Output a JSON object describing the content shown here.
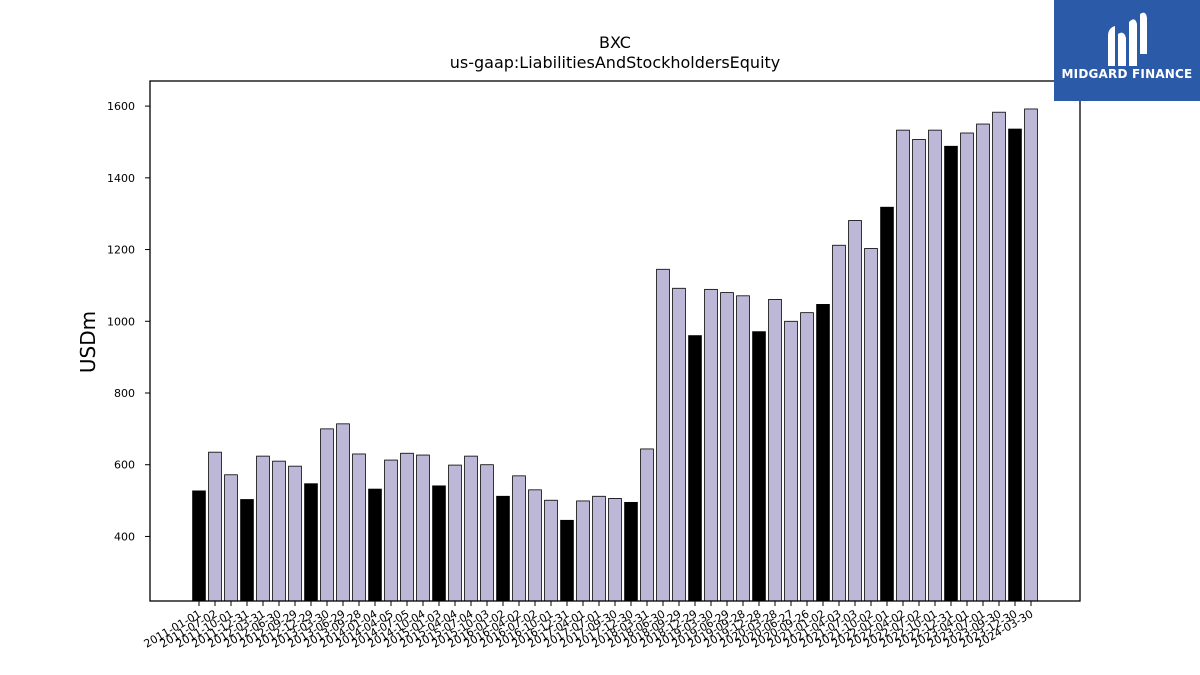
{
  "chart_data": {
    "type": "bar",
    "title": "BXC",
    "subtitle": "us-gaap:LiabilitiesAndStockholdersEquity",
    "ylabel": "USDm",
    "xlabel": "",
    "ylim": [
      220,
      1670
    ],
    "yticks": [
      400,
      600,
      800,
      1000,
      1200,
      1400,
      1600
    ],
    "colors": {
      "default": "#bdb8d8",
      "highlight": "#000000",
      "edge": "#000000"
    },
    "bars": [
      {
        "label": "2011-01-01",
        "value": 527,
        "highlight": true
      },
      {
        "label": "2011-07-02",
        "value": 635,
        "highlight": false
      },
      {
        "label": "2011-10-01",
        "value": 572,
        "highlight": false
      },
      {
        "label": "2011-12-31",
        "value": 503,
        "highlight": true
      },
      {
        "label": "2012-03-31",
        "value": 624,
        "highlight": false
      },
      {
        "label": "2012-06-30",
        "value": 610,
        "highlight": false
      },
      {
        "label": "2012-09-29",
        "value": 596,
        "highlight": false
      },
      {
        "label": "2012-12-29",
        "value": 547,
        "highlight": true
      },
      {
        "label": "2013-03-30",
        "value": 700,
        "highlight": false
      },
      {
        "label": "2013-06-29",
        "value": 714,
        "highlight": false
      },
      {
        "label": "2013-09-28",
        "value": 630,
        "highlight": false
      },
      {
        "label": "2014-01-04",
        "value": 532,
        "highlight": true
      },
      {
        "label": "2014-04-05",
        "value": 613,
        "highlight": false
      },
      {
        "label": "2014-07-05",
        "value": 632,
        "highlight": false
      },
      {
        "label": "2014-10-04",
        "value": 627,
        "highlight": false
      },
      {
        "label": "2015-01-03",
        "value": 541,
        "highlight": true
      },
      {
        "label": "2015-04-04",
        "value": 599,
        "highlight": false
      },
      {
        "label": "2015-07-04",
        "value": 624,
        "highlight": false
      },
      {
        "label": "2015-10-03",
        "value": 600,
        "highlight": false
      },
      {
        "label": "2016-01-02",
        "value": 512,
        "highlight": true
      },
      {
        "label": "2016-04-02",
        "value": 569,
        "highlight": false
      },
      {
        "label": "2016-07-02",
        "value": 530,
        "highlight": false
      },
      {
        "label": "2016-10-01",
        "value": 501,
        "highlight": false
      },
      {
        "label": "2016-12-31",
        "value": 445,
        "highlight": true
      },
      {
        "label": "2017-04-01",
        "value": 499,
        "highlight": false
      },
      {
        "label": "2017-07-01",
        "value": 512,
        "highlight": false
      },
      {
        "label": "2017-09-30",
        "value": 506,
        "highlight": false
      },
      {
        "label": "2017-12-30",
        "value": 495,
        "highlight": true
      },
      {
        "label": "2018-03-31",
        "value": 644,
        "highlight": false
      },
      {
        "label": "2018-06-30",
        "value": 1145,
        "highlight": false
      },
      {
        "label": "2018-09-29",
        "value": 1092,
        "highlight": false
      },
      {
        "label": "2018-12-29",
        "value": 960,
        "highlight": true
      },
      {
        "label": "2019-03-30",
        "value": 1089,
        "highlight": false
      },
      {
        "label": "2019-06-29",
        "value": 1080,
        "highlight": false
      },
      {
        "label": "2019-09-28",
        "value": 1071,
        "highlight": false
      },
      {
        "label": "2019-12-28",
        "value": 971,
        "highlight": true
      },
      {
        "label": "2020-03-28",
        "value": 1061,
        "highlight": false
      },
      {
        "label": "2020-06-27",
        "value": 1000,
        "highlight": false
      },
      {
        "label": "2020-09-26",
        "value": 1024,
        "highlight": false
      },
      {
        "label": "2021-01-02",
        "value": 1047,
        "highlight": true
      },
      {
        "label": "2021-04-03",
        "value": 1212,
        "highlight": false
      },
      {
        "label": "2021-07-03",
        "value": 1281,
        "highlight": false
      },
      {
        "label": "2021-10-02",
        "value": 1203,
        "highlight": false
      },
      {
        "label": "2022-01-01",
        "value": 1318,
        "highlight": true
      },
      {
        "label": "2022-04-02",
        "value": 1533,
        "highlight": false
      },
      {
        "label": "2022-07-02",
        "value": 1507,
        "highlight": false
      },
      {
        "label": "2022-10-01",
        "value": 1533,
        "highlight": false
      },
      {
        "label": "2022-12-31",
        "value": 1488,
        "highlight": true
      },
      {
        "label": "2023-04-01",
        "value": 1525,
        "highlight": false
      },
      {
        "label": "2023-07-01",
        "value": 1550,
        "highlight": false
      },
      {
        "label": "2023-09-30",
        "value": 1583,
        "highlight": false
      },
      {
        "label": "2023-12-30",
        "value": 1536,
        "highlight": true
      },
      {
        "label": "2024-03-30",
        "value": 1592,
        "highlight": false
      }
    ]
  },
  "logo": {
    "text": "MIDGARD FINANCE",
    "icon": "midgard-logo-icon",
    "background": "#2b5aa8"
  }
}
